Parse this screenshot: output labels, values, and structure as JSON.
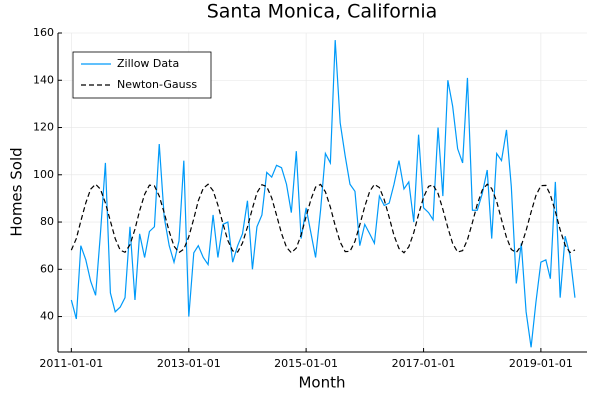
{
  "chart_data": {
    "type": "line",
    "title": "Santa Monica, California",
    "x_label": "Month",
    "y_label": "Homes Sold",
    "x": [
      "2011-01-01",
      "2011-02-01",
      "2011-03-01",
      "2011-04-01",
      "2011-05-01",
      "2011-06-01",
      "2011-07-01",
      "2011-08-01",
      "2011-09-01",
      "2011-10-01",
      "2011-11-01",
      "2011-12-01",
      "2012-01-01",
      "2012-02-01",
      "2012-03-01",
      "2012-04-01",
      "2012-05-01",
      "2012-06-01",
      "2012-07-01",
      "2012-08-01",
      "2012-09-01",
      "2012-10-01",
      "2012-11-01",
      "2012-12-01",
      "2013-01-01",
      "2013-02-01",
      "2013-03-01",
      "2013-04-01",
      "2013-05-01",
      "2013-06-01",
      "2013-07-01",
      "2013-08-01",
      "2013-09-01",
      "2013-10-01",
      "2013-11-01",
      "2013-12-01",
      "2014-01-01",
      "2014-02-01",
      "2014-03-01",
      "2014-04-01",
      "2014-05-01",
      "2014-06-01",
      "2014-07-01",
      "2014-08-01",
      "2014-09-01",
      "2014-10-01",
      "2014-11-01",
      "2014-12-01",
      "2015-01-01",
      "2015-02-01",
      "2015-03-01",
      "2015-04-01",
      "2015-05-01",
      "2015-06-01",
      "2015-07-01",
      "2015-08-01",
      "2015-09-01",
      "2015-10-01",
      "2015-11-01",
      "2015-12-01",
      "2016-01-01",
      "2016-02-01",
      "2016-03-01",
      "2016-04-01",
      "2016-05-01",
      "2016-06-01",
      "2016-07-01",
      "2016-08-01",
      "2016-09-01",
      "2016-10-01",
      "2016-11-01",
      "2016-12-01",
      "2017-01-01",
      "2017-02-01",
      "2017-03-01",
      "2017-04-01",
      "2017-05-01",
      "2017-06-01",
      "2017-07-01",
      "2017-08-01",
      "2017-09-01",
      "2017-10-01",
      "2017-11-01",
      "2017-12-01",
      "2018-01-01",
      "2018-02-01",
      "2018-03-01",
      "2018-04-01",
      "2018-05-01",
      "2018-06-01",
      "2018-07-01",
      "2018-08-01",
      "2018-09-01",
      "2018-10-01",
      "2018-11-01",
      "2018-12-01",
      "2019-01-01",
      "2019-02-01",
      "2019-03-01",
      "2019-04-01",
      "2019-05-01",
      "2019-06-01",
      "2019-07-01",
      "2019-08-01"
    ],
    "series": [
      {
        "name": "Zillow Data",
        "color": "#009af9",
        "dash": "solid",
        "values": [
          47,
          39,
          70,
          64,
          55,
          49,
          75,
          105,
          50,
          42,
          44,
          48,
          78,
          47,
          75,
          65,
          76,
          78,
          113,
          82,
          70,
          63,
          72,
          106,
          40,
          67,
          70,
          65,
          62,
          83,
          65,
          79,
          80,
          63,
          70,
          75,
          89,
          60,
          78,
          83,
          101,
          99,
          104,
          103,
          96,
          84,
          110,
          73,
          86,
          75,
          65,
          85,
          109,
          105,
          157,
          122,
          108,
          96,
          93,
          70,
          79,
          75,
          71,
          91,
          87,
          88,
          96,
          106,
          94,
          97,
          80,
          117,
          86,
          84,
          81,
          120,
          91,
          140,
          129,
          111,
          105,
          141,
          85,
          85,
          92,
          102,
          73,
          109,
          106,
          119,
          95,
          54,
          71,
          42,
          27,
          46,
          63,
          64,
          56,
          97,
          48,
          74,
          66,
          48
        ]
      },
      {
        "name": "Newton-Gauss",
        "color": "#000000",
        "dash": "dashed",
        "values": [
          68.1,
          73.0,
          80.4,
          88.1,
          93.9,
          96.0,
          93.9,
          88.1,
          80.4,
          73.0,
          68.1,
          67.2,
          70.4,
          77.0,
          84.8,
          91.7,
          95.6,
          95.3,
          91.0,
          83.9,
          76.0,
          69.8,
          67.1,
          68.5,
          73.8,
          81.4,
          89.0,
          94.3,
          96.0,
          93.3,
          87.2,
          79.4,
          72.2,
          67.8,
          67.3,
          71.1,
          77.9,
          85.8,
          92.4,
          95.8,
          95.0,
          90.2,
          82.9,
          75.2,
          69.3,
          67.0,
          69.0,
          74.6,
          82.3,
          89.8,
          94.8,
          95.9,
          92.8,
          86.3,
          78.5,
          71.5,
          67.5,
          67.6,
          71.8,
          78.8,
          86.6,
          93.0,
          95.9,
          94.6,
          89.5,
          82.0,
          74.3,
          68.8,
          67.0,
          69.5,
          75.5,
          83.3,
          90.5,
          95.1,
          95.7,
          92.1,
          85.4,
          77.6,
          70.9,
          67.3,
          67.9,
          72.5,
          79.8,
          87.5,
          93.5,
          96.0,
          94.2,
          88.7,
          81.0,
          73.5,
          68.4,
          67.1,
          70.0,
          76.4,
          84.2,
          91.2,
          95.4,
          95.5,
          91.5,
          84.5,
          76.7,
          70.2,
          67.1,
          68.2
        ]
      }
    ],
    "xlim": [
      "2010-10-10",
      "2019-10-15"
    ],
    "xticks": [
      "2011-01-01",
      "2013-01-01",
      "2015-01-01",
      "2017-01-01",
      "2019-01-01"
    ],
    "ylim": [
      25,
      160
    ],
    "yticks": [
      40,
      60,
      80,
      100,
      120,
      140,
      160
    ],
    "grid": true,
    "legend": "top-left"
  }
}
